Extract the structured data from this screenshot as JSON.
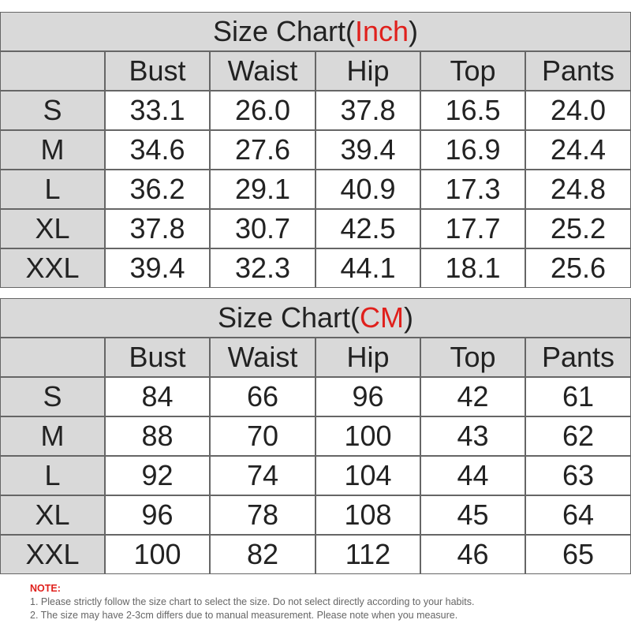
{
  "tables": [
    {
      "title": [
        "Size Chart(",
        "Inch",
        ")"
      ],
      "columns": [
        "Bust",
        "Waist",
        "Hip",
        "Top",
        "Pants"
      ],
      "rows": [
        {
          "size": "S",
          "values": [
            "33.1",
            "26.0",
            "37.8",
            "16.5",
            "24.0"
          ]
        },
        {
          "size": "M",
          "values": [
            "34.6",
            "27.6",
            "39.4",
            "16.9",
            "24.4"
          ]
        },
        {
          "size": "L",
          "values": [
            "36.2",
            "29.1",
            "40.9",
            "17.3",
            "24.8"
          ]
        },
        {
          "size": "XL",
          "values": [
            "37.8",
            "30.7",
            "42.5",
            "17.7",
            "25.2"
          ]
        },
        {
          "size": "XXL",
          "values": [
            "39.4",
            "32.3",
            "44.1",
            "18.1",
            "25.6"
          ]
        }
      ]
    },
    {
      "title": [
        "Size Chart(",
        "CM",
        ")"
      ],
      "columns": [
        "Bust",
        "Waist",
        "Hip",
        "Top",
        "Pants"
      ],
      "rows": [
        {
          "size": "S",
          "values": [
            "84",
            "66",
            "96",
            "42",
            "61"
          ]
        },
        {
          "size": "M",
          "values": [
            "88",
            "70",
            "100",
            "43",
            "62"
          ]
        },
        {
          "size": "L",
          "values": [
            "92",
            "74",
            "104",
            "44",
            "63"
          ]
        },
        {
          "size": "XL",
          "values": [
            "96",
            "78",
            "108",
            "45",
            "64"
          ]
        },
        {
          "size": "XXL",
          "values": [
            "100",
            "82",
            "112",
            "46",
            "65"
          ]
        }
      ]
    }
  ],
  "note": {
    "label": "NOTE:",
    "lines": [
      "1. Please strictly follow the size chart  to select the size. Do not select directly according to your habits.",
      "2. The size may have 2-3cm differs due to manual measurement. Please note when you measure."
    ]
  }
}
